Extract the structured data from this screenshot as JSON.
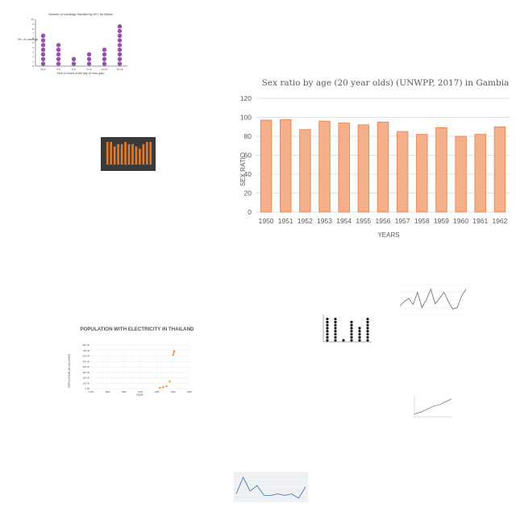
{
  "chart_data": [
    {
      "id": "main",
      "type": "bar",
      "title": "Sex ratio by age (20 year olds) (UNWPP, 2017) in Gambia",
      "xlabel": "YEARS",
      "ylabel": "SEX RATIO",
      "categories": [
        "1950",
        "1951",
        "1952",
        "1953",
        "1954",
        "1955",
        "1956",
        "1957",
        "1958",
        "1959",
        "1960",
        "1961",
        "1962"
      ],
      "values": [
        97,
        97.5,
        87,
        96,
        94,
        92,
        95,
        85,
        82,
        89,
        80,
        82,
        90
      ],
      "ylim": [
        0,
        120
      ],
      "yticks": [
        "0",
        "20",
        "40",
        "60",
        "80",
        "100",
        "120"
      ],
      "grid": true,
      "colors": {
        "bar_fill": "#f4b08a",
        "bar_stroke": "#e8864f",
        "grid": "#d9d9d9"
      }
    },
    {
      "id": "dot_a",
      "type": "scatter",
      "title": "Number of Landings Handled by ATC for Bibles",
      "xlabel": "Time in hours of the day (5 hour gap)",
      "ylabel": "No. of Landings",
      "categories": [
        "00-5",
        "5-6",
        "6-9",
        "9-12",
        "12-15",
        "15-18"
      ],
      "values": [
        7,
        5,
        2,
        3,
        4,
        9
      ],
      "ylim": [
        0,
        10
      ],
      "yticks": [
        "0",
        "1",
        "2",
        "3",
        "4",
        "5",
        "6",
        "7",
        "8",
        "9",
        "10"
      ],
      "colors": {
        "dot": "#9b4fb0"
      }
    },
    {
      "id": "dark",
      "type": "bar",
      "values": [
        10,
        10,
        8,
        9,
        9,
        10,
        9,
        9,
        8,
        7,
        9,
        10,
        10
      ],
      "colors": {
        "background": "#3a3a3a",
        "bar": "#e07a2a"
      }
    },
    {
      "id": "population",
      "type": "scatter",
      "title": "POPULATION WITH ELECTRICITY IN THAILAND",
      "xlabel": "YEAR",
      "ylabel": "POPULATION (IN MILLIONS)",
      "x": [
        1960,
        1970,
        1980,
        1990,
        2000,
        2002,
        2004
      ],
      "y": [
        15,
        28,
        45,
        130,
        620,
        660,
        690
      ],
      "xlim": [
        1750,
        2050
      ],
      "ylim": [
        0,
        800
      ],
      "xticks": [
        "1750",
        "1800",
        "1850",
        "1900",
        "1950",
        "2000",
        "2050"
      ],
      "yticks": [
        "0.00",
        "100.00",
        "200.00",
        "300.00",
        "400.00",
        "500.00",
        "600.00",
        "700.00",
        "800.00"
      ],
      "grid": true,
      "colors": {
        "dot": "#f28a22"
      }
    },
    {
      "id": "dot_b",
      "type": "scatter",
      "values": [
        8,
        8,
        1,
        7,
        5,
        8
      ],
      "ylim": [
        0,
        9
      ],
      "colors": {
        "dot": "#111111"
      }
    },
    {
      "id": "line_a",
      "type": "line",
      "values": [
        12,
        18,
        22,
        14,
        30,
        10,
        20,
        34,
        15,
        22,
        30,
        18,
        8,
        10,
        25,
        34
      ],
      "ylim": [
        0,
        40
      ],
      "colors": {
        "line": "#666666"
      }
    },
    {
      "id": "line_b",
      "type": "line",
      "values": [
        2,
        3,
        5,
        7,
        8,
        10,
        12
      ],
      "ylim": [
        0,
        14
      ],
      "colors": {
        "line": "#555555"
      }
    },
    {
      "id": "line_c",
      "type": "line",
      "values": [
        6,
        18,
        8,
        12,
        5,
        5,
        6,
        5,
        6,
        3,
        11
      ],
      "ylim": [
        0,
        22
      ],
      "colors": {
        "line": "#2d6db5"
      }
    }
  ]
}
